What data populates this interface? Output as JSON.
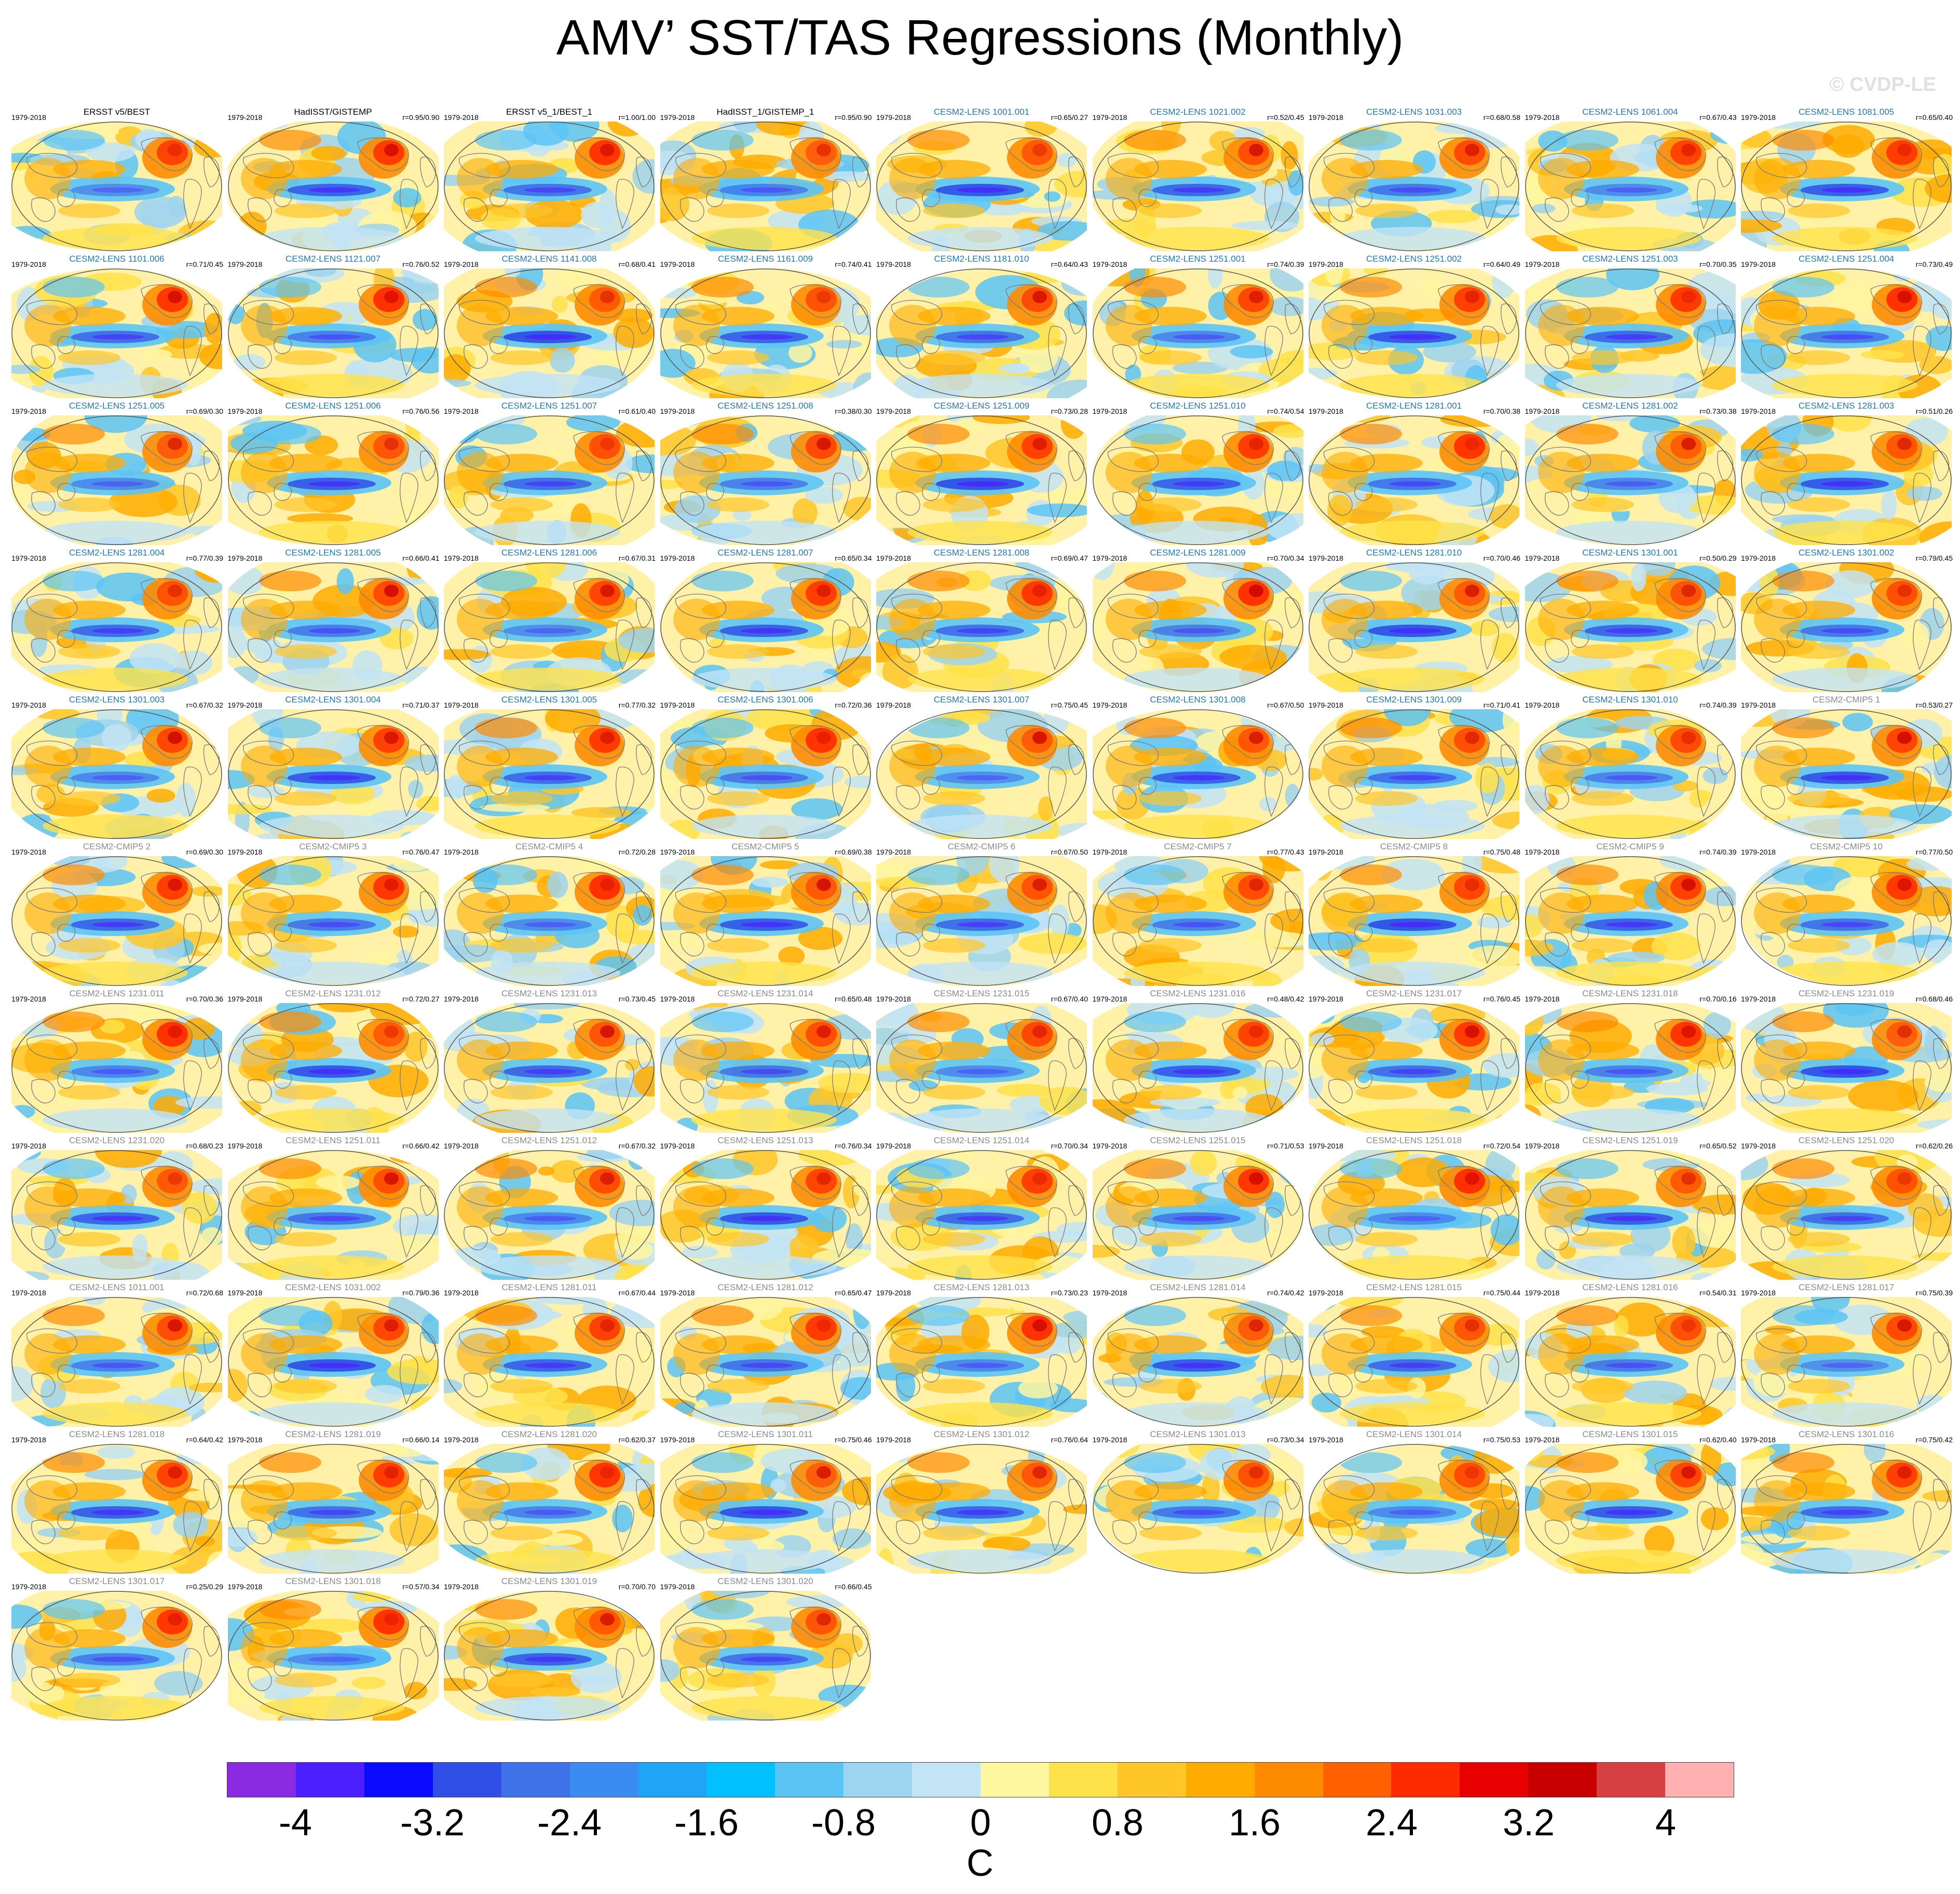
{
  "title": "AMV’ SST/TAS Regressions (Monthly)",
  "credit": "© CVDP-LE",
  "period": "1979-2018",
  "panels": [
    {
      "title": "ERSST v5/BEST",
      "corr": "",
      "c": "obs"
    },
    {
      "title": "HadISST/GISTEMP",
      "corr": "r=0.95/0.90",
      "c": "obs"
    },
    {
      "title": "ERSST v5_1/BEST_1",
      "corr": "r=1.00/1.00",
      "c": "obs"
    },
    {
      "title": "HadISST_1/GISTEMP_1",
      "corr": "r=0.95/0.90",
      "c": "obs"
    },
    {
      "title": "CESM2-LENS 1001.001",
      "corr": "r=0.65/0.27",
      "c": "lens"
    },
    {
      "title": "CESM2-LENS 1021.002",
      "corr": "r=0.52/0.45",
      "c": "lens"
    },
    {
      "title": "CESM2-LENS 1031.003",
      "corr": "r=0.68/0.58",
      "c": "lens"
    },
    {
      "title": "CESM2-LENS 1061.004",
      "corr": "r=0.67/0.43",
      "c": "lens"
    },
    {
      "title": "CESM2-LENS 1081.005",
      "corr": "r=0.65/0.40",
      "c": "lens"
    },
    {
      "title": "CESM2-LENS 1101.006",
      "corr": "r=0.71/0.45",
      "c": "lens"
    },
    {
      "title": "CESM2-LENS 1121.007",
      "corr": "r=0.76/0.52",
      "c": "lens"
    },
    {
      "title": "CESM2-LENS 1141.008",
      "corr": "r=0.68/0.41",
      "c": "lens"
    },
    {
      "title": "CESM2-LENS 1161.009",
      "corr": "r=0.74/0.41",
      "c": "lens"
    },
    {
      "title": "CESM2-LENS 1181.010",
      "corr": "r=0.64/0.43",
      "c": "lens"
    },
    {
      "title": "CESM2-LENS 1251.001",
      "corr": "r=0.74/0.39",
      "c": "lens"
    },
    {
      "title": "CESM2-LENS 1251.002",
      "corr": "r=0.64/0.49",
      "c": "lens"
    },
    {
      "title": "CESM2-LENS 1251.003",
      "corr": "r=0.70/0.35",
      "c": "lens"
    },
    {
      "title": "CESM2-LENS 1251.004",
      "corr": "r=0.73/0.49",
      "c": "lens"
    },
    {
      "title": "CESM2-LENS 1251.005",
      "corr": "r=0.69/0.30",
      "c": "lens"
    },
    {
      "title": "CESM2-LENS 1251.006",
      "corr": "r=0.76/0.56",
      "c": "lens"
    },
    {
      "title": "CESM2-LENS 1251.007",
      "corr": "r=0.61/0.40",
      "c": "lens"
    },
    {
      "title": "CESM2-LENS 1251.008",
      "corr": "r=0.38/0.30",
      "c": "lens"
    },
    {
      "title": "CESM2-LENS 1251.009",
      "corr": "r=0.73/0.28",
      "c": "lens"
    },
    {
      "title": "CESM2-LENS 1251.010",
      "corr": "r=0.74/0.54",
      "c": "lens"
    },
    {
      "title": "CESM2-LENS 1281.001",
      "corr": "r=0.70/0.38",
      "c": "lens"
    },
    {
      "title": "CESM2-LENS 1281.002",
      "corr": "r=0.73/0.38",
      "c": "lens"
    },
    {
      "title": "CESM2-LENS 1281.003",
      "corr": "r=0.51/0.26",
      "c": "lens"
    },
    {
      "title": "CESM2-LENS 1281.004",
      "corr": "r=0.77/0.39",
      "c": "lens"
    },
    {
      "title": "CESM2-LENS 1281.005",
      "corr": "r=0.66/0.41",
      "c": "lens"
    },
    {
      "title": "CESM2-LENS 1281.006",
      "corr": "r=0.67/0.31",
      "c": "lens"
    },
    {
      "title": "CESM2-LENS 1281.007",
      "corr": "r=0.65/0.34",
      "c": "lens"
    },
    {
      "title": "CESM2-LENS 1281.008",
      "corr": "r=0.69/0.47",
      "c": "lens"
    },
    {
      "title": "CESM2-LENS 1281.009",
      "corr": "r=0.70/0.34",
      "c": "lens"
    },
    {
      "title": "CESM2-LENS 1281.010",
      "corr": "r=0.70/0.46",
      "c": "lens"
    },
    {
      "title": "CESM2-LENS 1301.001",
      "corr": "r=0.50/0.29",
      "c": "lens"
    },
    {
      "title": "CESM2-LENS 1301.002",
      "corr": "r=0.79/0.45",
      "c": "lens"
    },
    {
      "title": "CESM2-LENS 1301.003",
      "corr": "r=0.67/0.32",
      "c": "lens"
    },
    {
      "title": "CESM2-LENS 1301.004",
      "corr": "r=0.71/0.37",
      "c": "lens"
    },
    {
      "title": "CESM2-LENS 1301.005",
      "corr": "r=0.77/0.32",
      "c": "lens"
    },
    {
      "title": "CESM2-LENS 1301.006",
      "corr": "r=0.72/0.36",
      "c": "lens"
    },
    {
      "title": "CESM2-LENS 1301.007",
      "corr": "r=0.75/0.45",
      "c": "lens"
    },
    {
      "title": "CESM2-LENS 1301.008",
      "corr": "r=0.67/0.50",
      "c": "lens"
    },
    {
      "title": "CESM2-LENS 1301.009",
      "corr": "r=0.71/0.41",
      "c": "lens"
    },
    {
      "title": "CESM2-LENS 1301.010",
      "corr": "r=0.74/0.39",
      "c": "lens"
    },
    {
      "title": "CESM2-CMIP5 1",
      "corr": "r=0.53/0.27",
      "c": "cmip"
    },
    {
      "title": "CESM2-CMIP5 2",
      "corr": "r=0.69/0.30",
      "c": "cmip"
    },
    {
      "title": "CESM2-CMIP5 3",
      "corr": "r=0.76/0.47",
      "c": "cmip"
    },
    {
      "title": "CESM2-CMIP5 4",
      "corr": "r=0.72/0.28",
      "c": "cmip"
    },
    {
      "title": "CESM2-CMIP5 5",
      "corr": "r=0.69/0.38",
      "c": "cmip"
    },
    {
      "title": "CESM2-CMIP5 6",
      "corr": "r=0.67/0.50",
      "c": "cmip"
    },
    {
      "title": "CESM2-CMIP5 7",
      "corr": "r=0.77/0.43",
      "c": "cmip"
    },
    {
      "title": "CESM2-CMIP5 8",
      "corr": "r=0.75/0.48",
      "c": "cmip"
    },
    {
      "title": "CESM2-CMIP5 9",
      "corr": "r=0.74/0.39",
      "c": "cmip"
    },
    {
      "title": "CESM2-CMIP5 10",
      "corr": "r=0.77/0.50",
      "c": "cmip"
    },
    {
      "title": "CESM2-LENS 1231.011",
      "corr": "r=0.70/0.36",
      "c": "cmip"
    },
    {
      "title": "CESM2-LENS 1231.012",
      "corr": "r=0.72/0.27",
      "c": "cmip"
    },
    {
      "title": "CESM2-LENS 1231.013",
      "corr": "r=0.73/0.45",
      "c": "cmip"
    },
    {
      "title": "CESM2-LENS 1231.014",
      "corr": "r=0.65/0.48",
      "c": "cmip"
    },
    {
      "title": "CESM2-LENS 1231.015",
      "corr": "r=0.67/0.40",
      "c": "cmip"
    },
    {
      "title": "CESM2-LENS 1231.016",
      "corr": "r=0.48/0.42",
      "c": "cmip"
    },
    {
      "title": "CESM2-LENS 1231.017",
      "corr": "r=0.76/0.45",
      "c": "cmip"
    },
    {
      "title": "CESM2-LENS 1231.018",
      "corr": "r=0.70/0.16",
      "c": "cmip"
    },
    {
      "title": "CESM2-LENS 1231.019",
      "corr": "r=0.68/0.46",
      "c": "cmip"
    },
    {
      "title": "CESM2-LENS 1231.020",
      "corr": "r=0.68/0.23",
      "c": "cmip"
    },
    {
      "title": "CESM2-LENS 1251.011",
      "corr": "r=0.66/0.42",
      "c": "cmip"
    },
    {
      "title": "CESM2-LENS 1251.012",
      "corr": "r=0.67/0.32",
      "c": "cmip"
    },
    {
      "title": "CESM2-LENS 1251.013",
      "corr": "r=0.76/0.34",
      "c": "cmip"
    },
    {
      "title": "CESM2-LENS 1251.014",
      "corr": "r=0.70/0.34",
      "c": "cmip"
    },
    {
      "title": "CESM2-LENS 1251.015",
      "corr": "r=0.71/0.53",
      "c": "cmip"
    },
    {
      "title": "CESM2-LENS 1251.018",
      "corr": "r=0.72/0.54",
      "c": "cmip"
    },
    {
      "title": "CESM2-LENS 1251.019",
      "corr": "r=0.65/0.52",
      "c": "cmip"
    },
    {
      "title": "CESM2-LENS 1251.020",
      "corr": "r=0.62/0.26",
      "c": "cmip"
    },
    {
      "title": "CESM2-LENS 1011.001",
      "corr": "r=0.72/0.68",
      "c": "cmip"
    },
    {
      "title": "CESM2-LENS 1031.002",
      "corr": "r=0.79/0.36",
      "c": "cmip"
    },
    {
      "title": "CESM2-LENS 1281.011",
      "corr": "r=0.67/0.44",
      "c": "cmip"
    },
    {
      "title": "CESM2-LENS 1281.012",
      "corr": "r=0.65/0.47",
      "c": "cmip"
    },
    {
      "title": "CESM2-LENS 1281.013",
      "corr": "r=0.73/0.23",
      "c": "cmip"
    },
    {
      "title": "CESM2-LENS 1281.014",
      "corr": "r=0.74/0.42",
      "c": "cmip"
    },
    {
      "title": "CESM2-LENS 1281.015",
      "corr": "r=0.75/0.44",
      "c": "cmip"
    },
    {
      "title": "CESM2-LENS 1281.016",
      "corr": "r=0.54/0.31",
      "c": "cmip"
    },
    {
      "title": "CESM2-LENS 1281.017",
      "corr": "r=0.75/0.39",
      "c": "cmip"
    },
    {
      "title": "CESM2-LENS 1281.018",
      "corr": "r=0.64/0.42",
      "c": "cmip"
    },
    {
      "title": "CESM2-LENS 1281.019",
      "corr": "r=0.66/0.14",
      "c": "cmip"
    },
    {
      "title": "CESM2-LENS 1281.020",
      "corr": "r=0.62/0.37",
      "c": "cmip"
    },
    {
      "title": "CESM2-LENS 1301.011",
      "corr": "r=0.75/0.46",
      "c": "cmip"
    },
    {
      "title": "CESM2-LENS 1301.012",
      "corr": "r=0.76/0.64",
      "c": "cmip"
    },
    {
      "title": "CESM2-LENS 1301.013",
      "corr": "r=0.73/0.34",
      "c": "cmip"
    },
    {
      "title": "CESM2-LENS 1301.014",
      "corr": "r=0.75/0.53",
      "c": "cmip"
    },
    {
      "title": "CESM2-LENS 1301.015",
      "corr": "r=0.62/0.40",
      "c": "cmip"
    },
    {
      "title": "CESM2-LENS 1301.016",
      "corr": "r=0.75/0.42",
      "c": "cmip"
    },
    {
      "title": "CESM2-LENS 1301.017",
      "corr": "r=0.25/0.29",
      "c": "cmip"
    },
    {
      "title": "CESM2-LENS 1301.018",
      "corr": "r=0.57/0.34",
      "c": "cmip"
    },
    {
      "title": "CESM2-LENS 1301.019",
      "corr": "r=0.70/0.70",
      "c": "cmip"
    },
    {
      "title": "CESM2-LENS 1301.020",
      "corr": "r=0.66/0.45",
      "c": "cmip"
    }
  ],
  "title_colors": {
    "obs": "#000000",
    "lens": "#1f77b4",
    "cmip": "#8a8a8a"
  },
  "colorbar": {
    "colors": [
      "#8a2be2",
      "#4b1fff",
      "#0a0aff",
      "#2f4fe6",
      "#3f72e8",
      "#3a8cf0",
      "#1fa5f5",
      "#00c0ff",
      "#5cc4f5",
      "#9dd4ef",
      "#c2e4f5",
      "#fff6a0",
      "#ffe24a",
      "#ffc628",
      "#ffab00",
      "#ff8c00",
      "#ff6100",
      "#ff2b00",
      "#e60000",
      "#c80000",
      "#d64040",
      "#ffb0b0"
    ],
    "ticks": [
      "-4",
      "-3.2",
      "-2.4",
      "-1.6",
      "-0.8",
      "0",
      "0.8",
      "1.6",
      "2.4",
      "3.2",
      "4"
    ],
    "units": "C"
  }
}
